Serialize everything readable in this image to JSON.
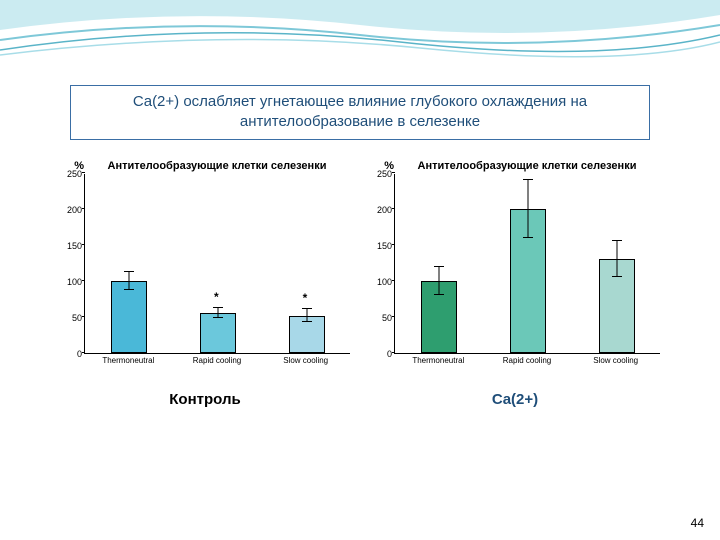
{
  "title_color": "#1f4e79",
  "title_border": "#3a6ea5",
  "main_title": "Ca(2+) ослабляет угнетающее влияние глубокого охлаждения на антителообразование в селезенке",
  "page_number": "44",
  "wave_colors": [
    "#7ec8d8",
    "#a8dde8",
    "#5ab4c8"
  ],
  "left_chart": {
    "pct_label": "%",
    "title": "Антителообразующие клетки селезенки",
    "ylim": [
      0,
      250
    ],
    "ytick_step": 50,
    "yticks": [
      0,
      50,
      100,
      150,
      200,
      250
    ],
    "categories": [
      "Thermoneutral",
      "Rapid cooling",
      "Slow cooling"
    ],
    "values": [
      100,
      56,
      52
    ],
    "err": [
      12,
      7,
      9
    ],
    "bar_colors": [
      "#4ab8d8",
      "#6bc8dc",
      "#a8d8e8"
    ],
    "stars": [
      false,
      true,
      true
    ],
    "bottom_label": "Контроль",
    "bottom_color": "#000000"
  },
  "right_chart": {
    "pct_label": "%",
    "title": "Антителообразующие клетки селезенки",
    "ylim": [
      0,
      250
    ],
    "ytick_step": 50,
    "yticks": [
      0,
      50,
      100,
      150,
      200,
      250
    ],
    "categories": [
      "Thermoneutral",
      "Rapid cooling",
      "Slow cooling"
    ],
    "values": [
      100,
      200,
      130
    ],
    "err": [
      20,
      40,
      25
    ],
    "bar_colors": [
      "#2e9e6f",
      "#6bc8b8",
      "#a8d8d0"
    ],
    "stars": [
      false,
      false,
      false
    ],
    "bottom_label": "Ca(2+)",
    "bottom_color": "#1f4e79"
  }
}
